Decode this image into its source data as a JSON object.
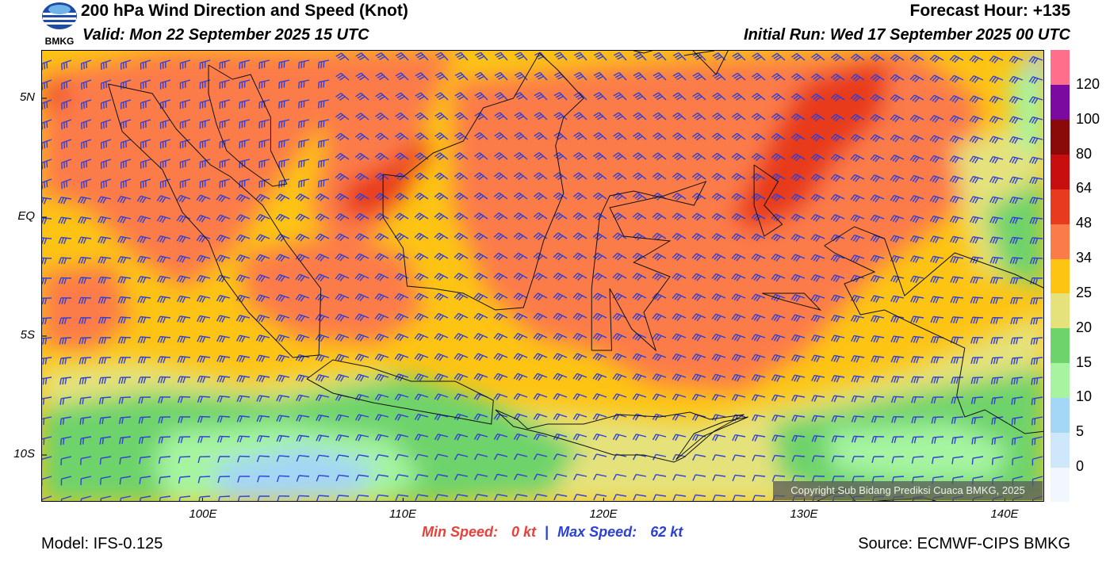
{
  "header": {
    "logo_text": "BMKG",
    "title": "200 hPa Wind Direction and Speed (Knot)",
    "valid": "Valid: Mon 22 September 2025 15 UTC",
    "forecast_hour": "Forecast Hour: +135",
    "initial_run": "Initial Run: Wed 17 September 2025 00 UTC"
  },
  "map": {
    "lon_range": [
      92,
      142
    ],
    "lat_range": [
      -12,
      7
    ],
    "lat_labels": [
      "5N",
      "EQ",
      "5S",
      "10S"
    ],
    "lat_values": [
      5,
      0,
      -5,
      -10
    ],
    "lon_labels": [
      "100E",
      "110E",
      "120E",
      "130E",
      "140E"
    ],
    "lon_values": [
      100,
      110,
      120,
      130,
      140
    ],
    "barb_color": "#2f3fd8",
    "copyright": "Copyright Sub Bidang Prediksi Cuaca BMKG, 2025"
  },
  "colorbar": {
    "labels": [
      "0",
      "5",
      "10",
      "15",
      "20",
      "25",
      "34",
      "48",
      "64",
      "80",
      "100",
      "120"
    ],
    "colors": [
      "#f2f7fd",
      "#cfe7fa",
      "#a4d6f6",
      "#a6f4a0",
      "#6ed36a",
      "#e5e27b",
      "#fdc414",
      "#fc7b4a",
      "#e83a1f",
      "#c80e0e",
      "#8a0a0a",
      "#7a0aa0",
      "#ff6e8a"
    ]
  },
  "footer": {
    "min_label": "Min Speed:",
    "min_value": "0 kt",
    "separator": "|",
    "max_label": "Max Speed:",
    "max_value": "62 kt",
    "model": "Model: IFS-0.125",
    "source": "Source: ECMWF-CIPS BMKG"
  }
}
